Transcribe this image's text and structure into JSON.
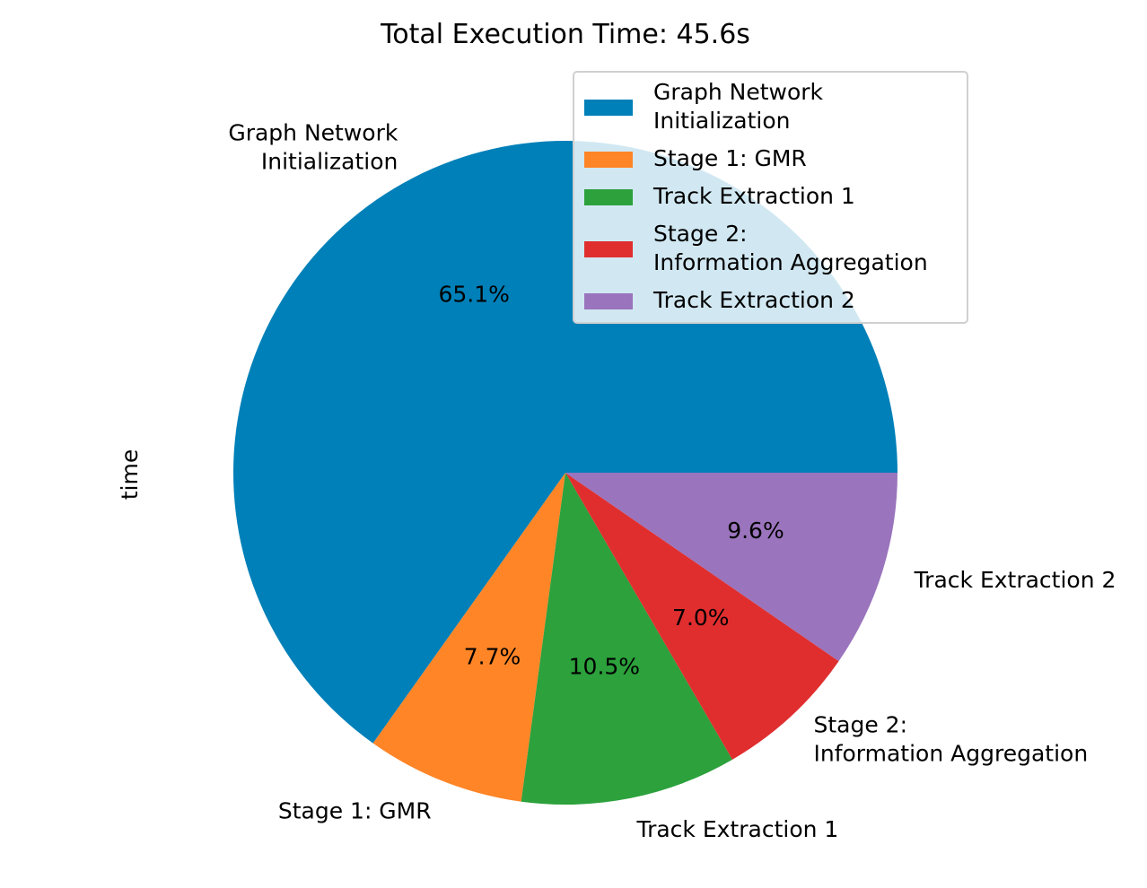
{
  "chart_data": {
    "type": "pie",
    "title": "Total Execution Time: 45.6s",
    "ylabel": "time",
    "start_angle_deg": 0,
    "direction": "counterclockwise",
    "legend_position": "upper-right",
    "slices": [
      {
        "label": "Graph Network\nInitialization",
        "percent": 65.1,
        "pct_text": "65.1%",
        "color": "#0080b8"
      },
      {
        "label": "Stage 1: GMR",
        "percent": 7.7,
        "pct_text": "7.7%",
        "color": "#ff8527"
      },
      {
        "label": "Track Extraction 1",
        "percent": 10.5,
        "pct_text": "10.5%",
        "color": "#2ca13c"
      },
      {
        "label": "Stage 2:\nInformation Aggregation",
        "percent": 7.0,
        "pct_text": "7.0%",
        "color": "#e02e2f"
      },
      {
        "label": "Track Extraction 2",
        "percent": 9.6,
        "pct_text": "9.6%",
        "color": "#9a74bc"
      }
    ]
  }
}
